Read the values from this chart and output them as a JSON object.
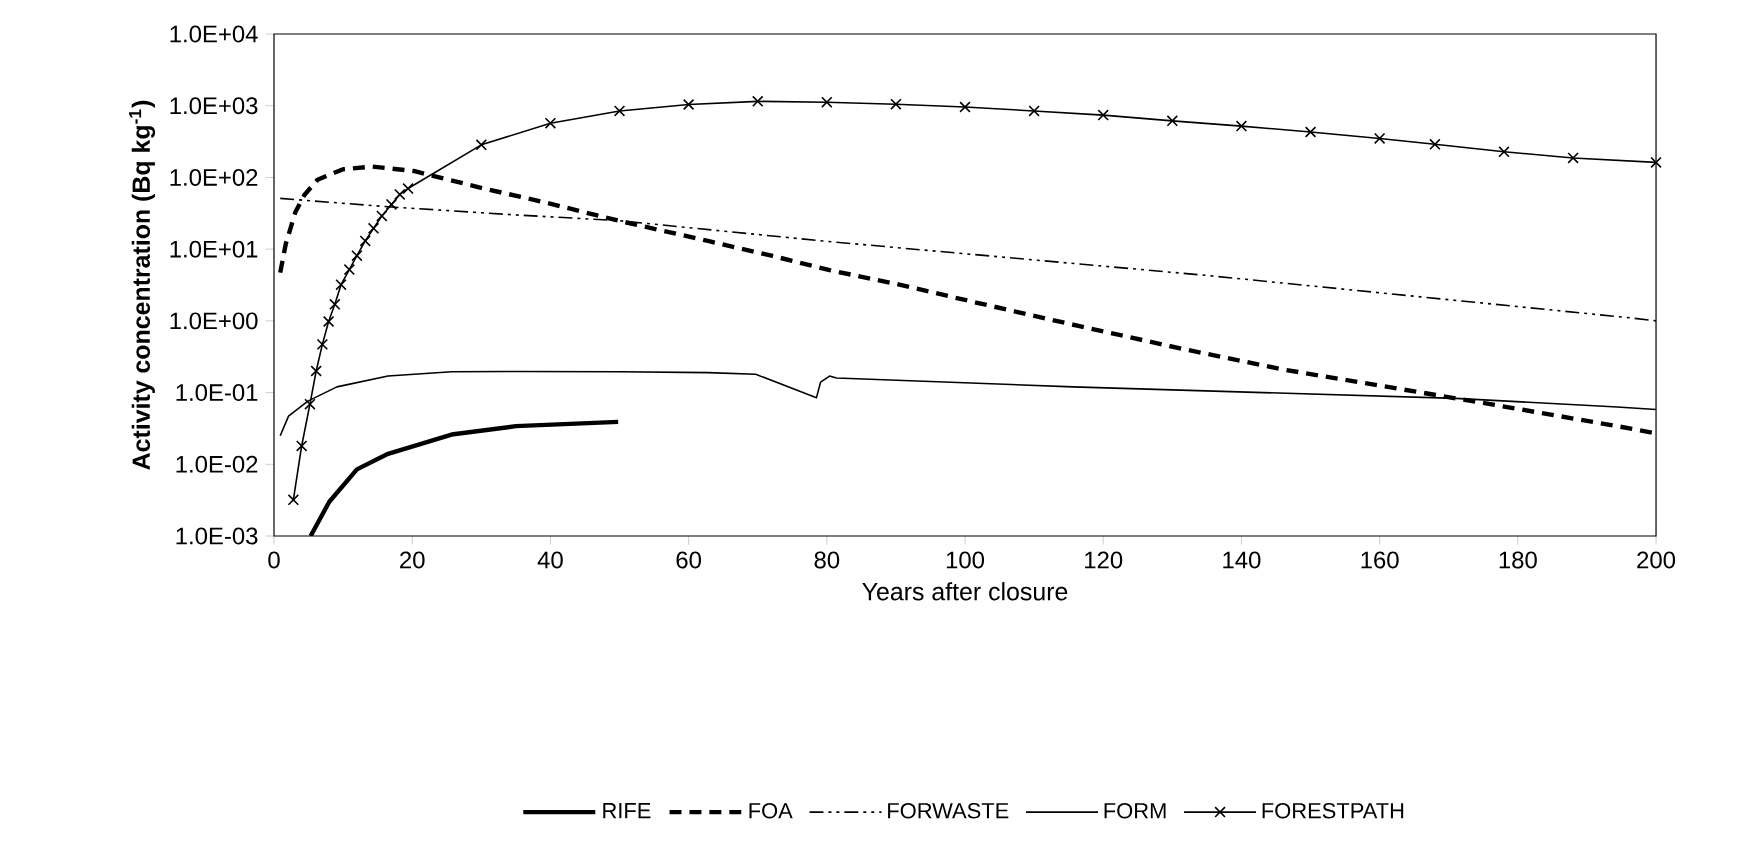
{
  "chart_data": {
    "type": "line",
    "xlabel": "Years after closure",
    "ylabel": "Activity concentration (Bq kg$^{-1}$)",
    "log": "y",
    "grid": false,
    "legend": "bottom",
    "xlim": [
      0,
      200
    ],
    "xticks": [
      0,
      20,
      40,
      60,
      80,
      100,
      120,
      140,
      160,
      180,
      200
    ],
    "ylim": [
      0.001,
      10000
    ],
    "yticks": [
      {
        "value": 0.001,
        "label": "1.0E-03"
      },
      {
        "value": 0.01,
        "label": "1.0E-02"
      },
      {
        "value": 0.1,
        "label": "1.0E-01"
      },
      {
        "value": 1,
        "label": "1.0E+00"
      },
      {
        "value": 10,
        "label": "1.0E+01"
      },
      {
        "value": 100,
        "label": "1.0E+02"
      },
      {
        "value": 1000,
        "label": "1.0E+03"
      },
      {
        "value": 10000,
        "label": "1.0E+04"
      }
    ],
    "series": [
      {
        "name": "RIFE",
        "color": "#000000",
        "line_style": "solid",
        "marker": "none",
        "x": [
          5.3,
          8,
          12,
          16.5,
          25.7,
          35,
          49.8
        ],
        "values": [
          0.001,
          0.003,
          0.0085,
          0.014,
          0.026,
          0.034,
          0.039
        ]
      },
      {
        "name": "FOA",
        "color": "#000000",
        "line_style": "dashed",
        "marker": "none",
        "x": [
          0.9,
          1.7,
          3.1,
          4.4,
          6.3,
          10,
          14.2,
          20.2,
          30.4,
          39.6,
          49.8,
          62.8,
          72,
          80.4,
          90.5,
          101.6,
          116.4,
          131.3,
          146,
          159,
          176,
          194.4,
          200
        ],
        "values": [
          4.7,
          11.8,
          33,
          57,
          93,
          130,
          142,
          123,
          70,
          44,
          25,
          13,
          8.1,
          5.1,
          3.2,
          1.8,
          0.85,
          0.41,
          0.21,
          0.13,
          0.069,
          0.034,
          0.027
        ]
      },
      {
        "name": "FORWASTE",
        "color": "#000000",
        "line_style": "dashdot",
        "marker": "none",
        "x": [
          0.9,
          16.5,
          35,
          49.8,
          79.4,
          135,
          196.3,
          200
        ],
        "values": [
          51,
          39,
          30,
          25,
          13,
          4.3,
          1.1,
          1.0
        ]
      },
      {
        "name": "FORM",
        "color": "#000000",
        "line_style": "solid",
        "marker": "none",
        "x": [
          0.9,
          2.1,
          4.9,
          9.1,
          16.5,
          25.7,
          35,
          50,
          62.8,
          69.7,
          78.5,
          79.1,
          80.4,
          81.4,
          115.6,
          171,
          194.4,
          200
        ],
        "values": [
          0.025,
          0.047,
          0.076,
          0.12,
          0.17,
          0.195,
          0.197,
          0.195,
          0.19,
          0.18,
          0.085,
          0.14,
          0.17,
          0.16,
          0.12,
          0.083,
          0.063,
          0.058
        ]
      },
      {
        "name": "FORESTPATH",
        "color": "#000000",
        "line_style": "solid",
        "marker": "cross",
        "x": [
          2.8,
          4.0,
          5.2,
          6.1,
          7.0,
          7.9,
          8.8,
          9.7,
          10.9,
          12.0,
          13.2,
          14.4,
          15.6,
          17.0,
          18.2,
          19.4,
          30,
          40,
          50,
          60,
          70,
          80,
          90,
          100,
          110,
          120,
          130,
          140,
          150,
          160,
          168,
          178,
          188,
          200
        ],
        "values": [
          0.0032,
          0.018,
          0.069,
          0.2,
          0.47,
          0.98,
          1.7,
          3.2,
          5.2,
          8.1,
          13,
          19.5,
          29,
          42,
          58,
          70,
          285,
          570,
          845,
          1040,
          1150,
          1120,
          1050,
          960,
          845,
          740,
          615,
          520,
          430,
          350,
          290,
          228,
          187,
          162
        ]
      }
    ]
  }
}
